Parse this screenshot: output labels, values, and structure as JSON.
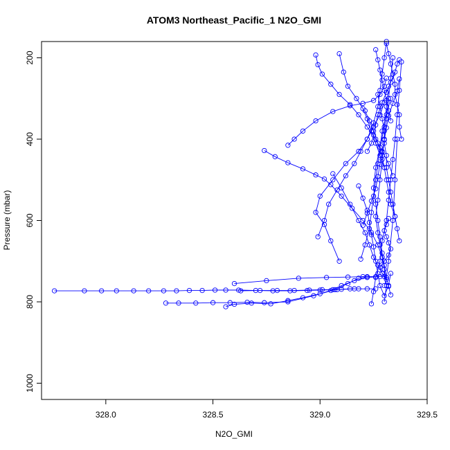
{
  "chart_data": {
    "type": "scatter",
    "title": "ATOM3 Northeast_Pacific_1 N2O_GMI",
    "xlabel": "N2O_GMI",
    "ylabel": "Pressure (mbar)",
    "xlim": [
      327.7,
      329.5
    ],
    "ylim": [
      1040,
      160
    ],
    "y_inverted": true,
    "grid": false,
    "line_style": "points-connected",
    "marker": "open-circle",
    "color": "#0000ff",
    "x_ticks": [
      "328.0",
      "328.5",
      "329.0",
      "329.5"
    ],
    "x_tick_values": [
      328.0,
      328.5,
      329.0,
      329.5
    ],
    "y_ticks": [
      "200",
      "400",
      "600",
      "800",
      "1000"
    ],
    "y_tick_values": [
      200,
      400,
      600,
      800,
      1000
    ],
    "series": [
      {
        "x": [
          327.76,
          327.9,
          327.98,
          328.05,
          328.13,
          328.2,
          328.27,
          328.33,
          328.39,
          328.45,
          328.51,
          328.56,
          328.62,
          328.7,
          328.78,
          328.86,
          328.94,
          329.0,
          329.08,
          329.16
        ],
        "y": [
          773,
          773,
          773,
          773,
          773,
          773,
          773,
          773,
          772,
          772,
          771,
          771,
          771,
          772,
          773,
          773,
          772,
          771,
          770,
          768
        ]
      },
      {
        "x": [
          328.63,
          328.72,
          328.8,
          328.88,
          328.95,
          329.01,
          329.06,
          329.1,
          329.14,
          329.18,
          329.22,
          329.26
        ],
        "y": [
          773,
          772,
          772,
          772,
          771,
          770,
          770,
          769,
          768,
          768,
          768,
          768
        ]
      },
      {
        "x": [
          328.28,
          328.34,
          328.42,
          328.5,
          328.58,
          328.66,
          328.74,
          328.85,
          328.97,
          329.07,
          329.13,
          329.18,
          329.22
        ],
        "y": [
          803,
          803,
          803,
          802,
          802,
          801,
          802,
          800,
          785,
          770,
          755,
          742,
          738
        ]
      },
      {
        "x": [
          328.56,
          328.6,
          328.68,
          328.77,
          328.85,
          328.92,
          329.0,
          329.05,
          329.1,
          329.16,
          329.22,
          329.28
        ],
        "y": [
          812,
          806,
          803,
          805,
          797,
          790,
          780,
          772,
          760,
          748,
          740,
          738
        ]
      },
      {
        "x": [
          328.6,
          328.75,
          328.9,
          329.03,
          329.13,
          329.2,
          329.26,
          329.3
        ],
        "y": [
          755,
          748,
          742,
          740,
          739,
          738,
          738,
          738
        ]
      },
      {
        "x": [
          329.09,
          329.05,
          329.02,
          328.98,
          329.0,
          329.06,
          329.12,
          329.18,
          329.22,
          329.25,
          329.27,
          329.28,
          329.29,
          329.3,
          329.31
        ],
        "y": [
          700,
          650,
          610,
          580,
          540,
          500,
          460,
          430,
          400,
          360,
          320,
          280,
          240,
          200,
          160
        ]
      },
      {
        "x": [
          328.74,
          328.79,
          328.85,
          328.92,
          328.98,
          329.02,
          329.05,
          329.1,
          329.15,
          329.2,
          329.24,
          329.27,
          329.29
        ],
        "y": [
          428,
          443,
          458,
          473,
          488,
          498,
          512,
          540,
          570,
          600,
          630,
          660,
          690
        ]
      },
      {
        "x": [
          328.85,
          328.88,
          328.92,
          328.98,
          329.06,
          329.14,
          329.2,
          329.25,
          329.28,
          329.3,
          329.31
        ],
        "y": [
          415,
          400,
          380,
          355,
          332,
          318,
          312,
          305,
          290,
          270,
          250
        ]
      },
      {
        "x": [
          328.99,
          329.02,
          329.04,
          329.08,
          329.12,
          329.16,
          329.19,
          329.22,
          329.25,
          329.28,
          329.3
        ],
        "y": [
          640,
          600,
          560,
          525,
          490,
          460,
          430,
          400,
          370,
          340,
          310
        ]
      },
      {
        "x": [
          328.98,
          328.99,
          329.01,
          329.05,
          329.09,
          329.14,
          329.18,
          329.22,
          329.26,
          329.29,
          329.32,
          329.34
        ],
        "y": [
          193,
          217,
          240,
          265,
          290,
          315,
          340,
          370,
          400,
          430,
          460,
          490
        ]
      },
      {
        "x": [
          329.09,
          329.11,
          329.13,
          329.17,
          329.2,
          329.22,
          329.24,
          329.26,
          329.28,
          329.3
        ],
        "y": [
          190,
          235,
          270,
          300,
          325,
          350,
          380,
          410,
          440,
          470
        ]
      },
      {
        "x": [
          329.06,
          329.1,
          329.14,
          329.18,
          329.21,
          329.23,
          329.25,
          329.27,
          329.29,
          329.31,
          329.32,
          329.34,
          329.35,
          329.36
        ],
        "y": [
          485,
          520,
          560,
          600,
          630,
          660,
          690,
          710,
          730,
          740,
          700,
          600,
          500,
          400
        ]
      },
      {
        "x": [
          329.24,
          329.25,
          329.26,
          329.28,
          329.29,
          329.31,
          329.32,
          329.33,
          329.34,
          329.35,
          329.36,
          329.37,
          329.38
        ],
        "y": [
          805,
          775,
          740,
          700,
          650,
          600,
          550,
          500,
          450,
          400,
          340,
          280,
          210
        ]
      },
      {
        "x": [
          329.3,
          329.31,
          329.3,
          329.29,
          329.28,
          329.27,
          329.26,
          329.27,
          329.28,
          329.29,
          329.3,
          329.31,
          329.32,
          329.33,
          329.34
        ],
        "y": [
          800,
          760,
          720,
          690,
          660,
          630,
          590,
          550,
          500,
          450,
          400,
          350,
          300,
          250,
          200
        ]
      },
      {
        "x": [
          329.33,
          329.32,
          329.31,
          329.3,
          329.29,
          329.28,
          329.27,
          329.26,
          329.25,
          329.26,
          329.28,
          329.3,
          329.31,
          329.32
        ],
        "y": [
          783,
          762,
          740,
          710,
          680,
          640,
          600,
          560,
          520,
          470,
          420,
          370,
          320,
          270
        ]
      },
      {
        "x": [
          329.19,
          329.21,
          329.23,
          329.24,
          329.25,
          329.26,
          329.27,
          329.28,
          329.29,
          329.31,
          329.33
        ],
        "y": [
          695,
          660,
          620,
          580,
          540,
          500,
          460,
          420,
          380,
          340,
          300
        ]
      },
      {
        "x": [
          329.18,
          329.2,
          329.22,
          329.23,
          329.24,
          329.25,
          329.26,
          329.27,
          329.28,
          329.3,
          329.32,
          329.33
        ],
        "y": [
          515,
          545,
          575,
          605,
          635,
          665,
          700,
          730,
          760,
          785,
          760,
          730
        ]
      },
      {
        "x": [
          329.2,
          329.22,
          329.24,
          329.26,
          329.27,
          329.28,
          329.29,
          329.3,
          329.31,
          329.32,
          329.34,
          329.36,
          329.37
        ],
        "y": [
          612,
          582,
          552,
          522,
          492,
          462,
          432,
          402,
          372,
          342,
          312,
          282,
          252
        ]
      },
      {
        "x": [
          329.22,
          329.24,
          329.25,
          329.26,
          329.27,
          329.29,
          329.31,
          329.33,
          329.35,
          329.36,
          329.37
        ],
        "y": [
          430,
          410,
          390,
          365,
          340,
          310,
          285,
          260,
          235,
          215,
          205
        ]
      },
      {
        "x": [
          329.21,
          329.23,
          329.25,
          329.27,
          329.29,
          329.3,
          329.31,
          329.32,
          329.33,
          329.35,
          329.36,
          329.37
        ],
        "y": [
          330,
          355,
          380,
          410,
          440,
          470,
          500,
          530,
          560,
          590,
          620,
          650
        ]
      },
      {
        "x": [
          329.3,
          329.31,
          329.29,
          329.28,
          329.3,
          329.32,
          329.33,
          329.32,
          329.31,
          329.3,
          329.31,
          329.32
        ],
        "y": [
          760,
          745,
          730,
          715,
          700,
          685,
          670,
          655,
          640,
          625,
          610,
          595
        ]
      },
      {
        "x": [
          329.27,
          329.28,
          329.29,
          329.3,
          329.3,
          329.31,
          329.31,
          329.32,
          329.33,
          329.34,
          329.35
        ],
        "y": [
          290,
          320,
          350,
          380,
          410,
          440,
          470,
          500,
          530,
          560,
          590
        ]
      },
      {
        "x": [
          329.31,
          329.32,
          329.33,
          329.34,
          329.35,
          329.35,
          329.36,
          329.37,
          329.37,
          329.38
        ],
        "y": [
          165,
          190,
          215,
          240,
          265,
          290,
          315,
          340,
          370,
          400
        ]
      },
      {
        "x": [
          329.26,
          329.27,
          329.28,
          329.29,
          329.3,
          329.31,
          329.32,
          329.33
        ],
        "y": [
          180,
          205,
          230,
          255,
          280,
          305,
          330,
          355
        ]
      }
    ]
  }
}
